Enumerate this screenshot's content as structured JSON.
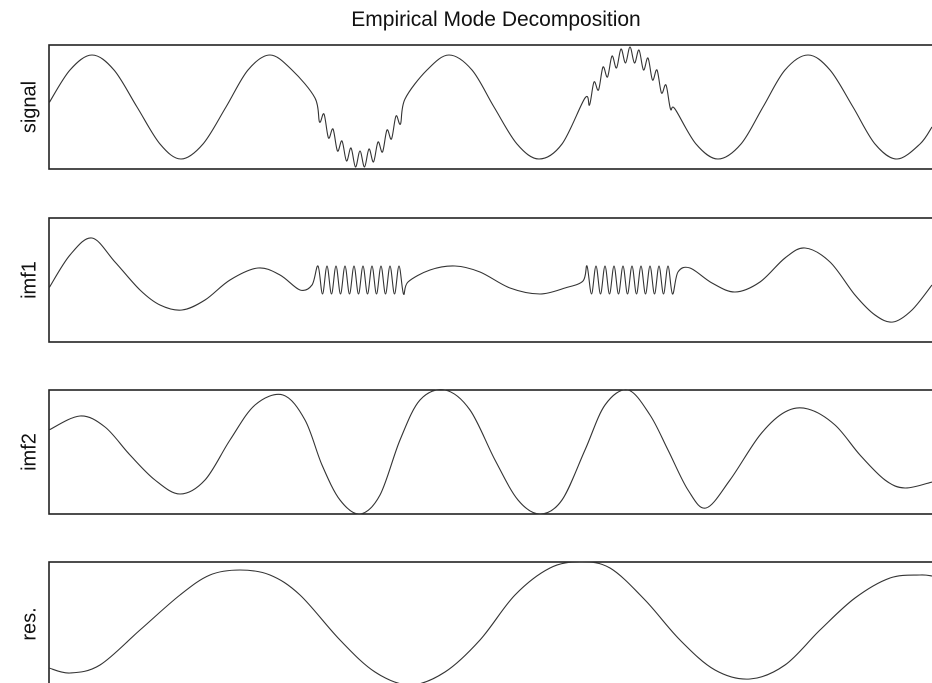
{
  "chart_data": [
    {
      "type": "line",
      "title": "Empirical Mode Decomposition",
      "ylabel": "signal",
      "color": "#333333",
      "xlim": [
        49,
        932
      ],
      "ylim": [
        -62,
        62
      ],
      "x": [
        49,
        70,
        92,
        114,
        137,
        160,
        181,
        203,
        226,
        248,
        270,
        292,
        315,
        319.5,
        324,
        328.5,
        333,
        337.5,
        342,
        346.5,
        351,
        355.5,
        360,
        364.5,
        369,
        373.5,
        378,
        382.5,
        387,
        391.5,
        396,
        400.5,
        405,
        427,
        449,
        472,
        494,
        517,
        539,
        562,
        585,
        589.5,
        594,
        598.5,
        603,
        607.5,
        612,
        616.5,
        621,
        625.5,
        630,
        634.5,
        639,
        643.5,
        648,
        652.5,
        657,
        661.5,
        666,
        670.5,
        675,
        696,
        718,
        741,
        763,
        785,
        808,
        830,
        853,
        875,
        897,
        920,
        932
      ],
      "values": [
        4,
        37,
        52,
        37,
        0,
        -37,
        -52,
        -37,
        0,
        37,
        52,
        37,
        9,
        -15,
        -7,
        -31,
        -22,
        -44,
        -34,
        -54,
        -41,
        -60,
        -44,
        -60,
        -42,
        -55,
        -35,
        -45,
        -23,
        -32,
        -9,
        -17,
        8,
        37,
        52,
        37,
        0,
        -37,
        -52,
        -37,
        9,
        2,
        25,
        17,
        40,
        30,
        51,
        39,
        58,
        44,
        60,
        44,
        57,
        37,
        49,
        27,
        37,
        14,
        22,
        -2,
        -2,
        -37,
        -52,
        -37,
        0,
        37,
        52,
        37,
        0,
        -37,
        -52,
        -37,
        -20
      ]
    },
    {
      "type": "line",
      "ylabel": "imf1",
      "color": "#333333",
      "xlim": [
        49,
        932
      ],
      "ylim": [
        -62,
        62
      ],
      "x": [
        49,
        70,
        92,
        115,
        140,
        160,
        182,
        205,
        230,
        258,
        280,
        300,
        312,
        318,
        322.5,
        327,
        331.5,
        336,
        340.5,
        345,
        349.5,
        354,
        358.5,
        363,
        367.5,
        372,
        376.5,
        381,
        385.5,
        390,
        394.5,
        399,
        403.5,
        408,
        430,
        455,
        480,
        510,
        540,
        565,
        583,
        587,
        591.5,
        596,
        600.5,
        605,
        609.5,
        614,
        618.5,
        623,
        627.5,
        632,
        636.5,
        641,
        645.5,
        650,
        654.5,
        659,
        663.5,
        668,
        672.5,
        678,
        690,
        712,
        735,
        760,
        785,
        805,
        830,
        855,
        875,
        893,
        912,
        932
      ],
      "values": [
        -8,
        25,
        42,
        18,
        -10,
        -25,
        -30,
        -20,
        0,
        12,
        5,
        -10,
        -5,
        14,
        -14,
        14,
        -14,
        14,
        -14,
        14,
        -14,
        14,
        -14,
        14,
        -14,
        14,
        -14,
        14,
        -14,
        14,
        -14,
        14,
        -14,
        -2,
        10,
        14,
        8,
        -8,
        -14,
        -8,
        -1,
        14,
        -14,
        14,
        -14,
        14,
        -14,
        14,
        -14,
        14,
        -14,
        14,
        -14,
        14,
        -14,
        14,
        -14,
        14,
        -14,
        14,
        -14,
        8,
        12,
        -3,
        -12,
        -2,
        22,
        32,
        18,
        -15,
        -35,
        -42,
        -30,
        -5
      ]
    },
    {
      "type": "line",
      "ylabel": "imf2",
      "color": "#333333",
      "xlim": [
        49,
        932
      ],
      "ylim": [
        -62,
        62
      ],
      "x": [
        49,
        80,
        105,
        130,
        155,
        180,
        205,
        230,
        255,
        283,
        305,
        322,
        340,
        360,
        380,
        400,
        420,
        445,
        470,
        495,
        518,
        540,
        562,
        585,
        605,
        628,
        650,
        668,
        688,
        706,
        730,
        760,
        785,
        808,
        835,
        860,
        885,
        905,
        932
      ],
      "values": [
        22,
        36,
        25,
        -3,
        -28,
        -42,
        -28,
        12,
        47,
        57,
        32,
        -13,
        -48,
        -62,
        -43,
        12,
        52,
        62,
        42,
        -8,
        -48,
        -62,
        -48,
        2,
        47,
        62,
        37,
        2,
        -38,
        -56,
        -28,
        17,
        40,
        43,
        27,
        -3,
        -28,
        -36,
        -30
      ]
    },
    {
      "type": "line",
      "ylabel": "res.",
      "color": "#333333",
      "xlim": [
        49,
        932
      ],
      "ylim": [
        -62,
        62
      ],
      "x": [
        49,
        70,
        100,
        140,
        180,
        210,
        240,
        270,
        300,
        340,
        375,
        410,
        445,
        480,
        515,
        550,
        580,
        610,
        645,
        680,
        715,
        750,
        785,
        820,
        855,
        890,
        920,
        932
      ],
      "values": [
        -44,
        -49,
        -41,
        -6,
        29,
        49,
        54,
        49,
        29,
        -16,
        -48,
        -61,
        -48,
        -16,
        29,
        56,
        62,
        56,
        24,
        -16,
        -46,
        -55,
        -41,
        -6,
        26,
        46,
        49,
        48
      ]
    }
  ]
}
